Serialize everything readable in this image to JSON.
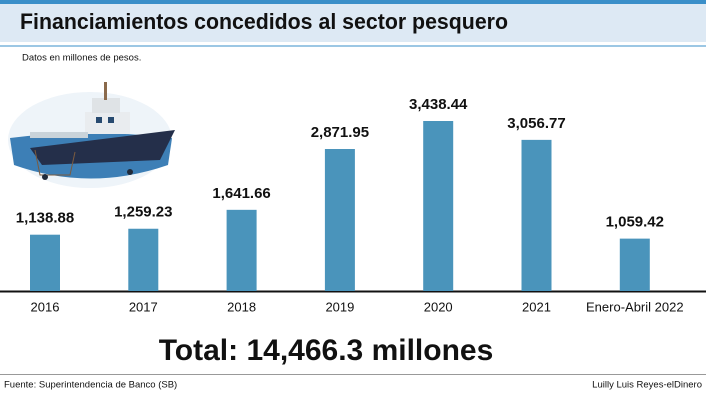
{
  "chart_data": {
    "type": "bar",
    "title": "Financiamientos concedidos al sector pesquero",
    "subtitle": "Datos en millones de pesos.",
    "categories": [
      "2016",
      "2017",
      "2018",
      "2019",
      "2020",
      "2021",
      "Enero-Abril 2022"
    ],
    "values": [
      1138.88,
      1259.23,
      1641.66,
      2871.95,
      3438.44,
      3056.77,
      1059.42
    ],
    "value_labels": [
      "1,138.88",
      "1,259.23",
      "1,641.66",
      "2,871.95",
      "3,438.44",
      "3,056.77",
      "1,059.42"
    ],
    "color": "#4a94bb",
    "total": "Total: 14,466.3 millones",
    "source": "Fuente: Superintendencia de Banco (SB)",
    "credit": "Luilly Luis Reyes-elDinero"
  }
}
